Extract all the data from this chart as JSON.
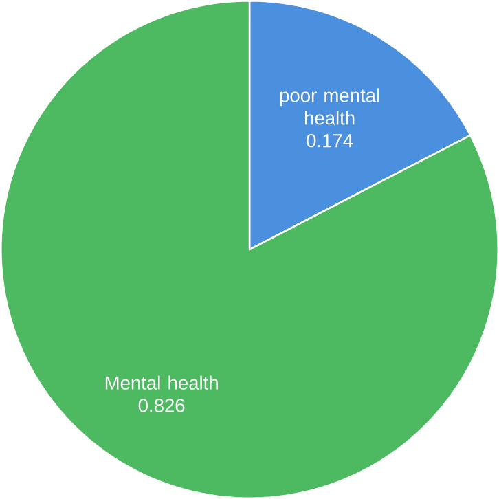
{
  "chart_data": {
    "type": "pie",
    "categories": [
      "poor mental health",
      "Mental health"
    ],
    "values": [
      0.174,
      0.826
    ],
    "value_labels": [
      "0.174",
      "0.826"
    ],
    "colors": [
      "#4a90df",
      "#4dba62"
    ]
  }
}
